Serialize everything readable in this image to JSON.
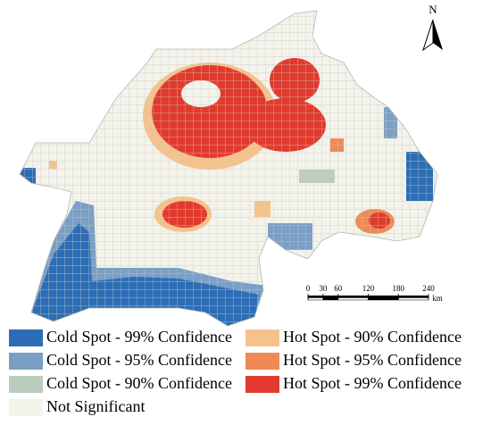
{
  "north_label": "N",
  "scale_bar": {
    "ticks": [
      0,
      30,
      60,
      120,
      180,
      240
    ],
    "unit": "km"
  },
  "legend": [
    {
      "label": "Cold Spot - 99% Confidence",
      "color": "#2c6db5"
    },
    {
      "label": "Cold Spot - 95% Confidence",
      "color": "#7b9fc4"
    },
    {
      "label": "Cold Spot - 90% Confidence",
      "color": "#bccdbf"
    },
    {
      "label": "Not Significant",
      "color": "#f3f3ec"
    },
    {
      "label": "Hot Spot - 90% Confidence",
      "color": "#f5c28e"
    },
    {
      "label": "Hot Spot - 95% Confidence",
      "color": "#ee8a55"
    },
    {
      "label": "Hot Spot - 99% Confidence",
      "color": "#e03b2e"
    }
  ]
}
